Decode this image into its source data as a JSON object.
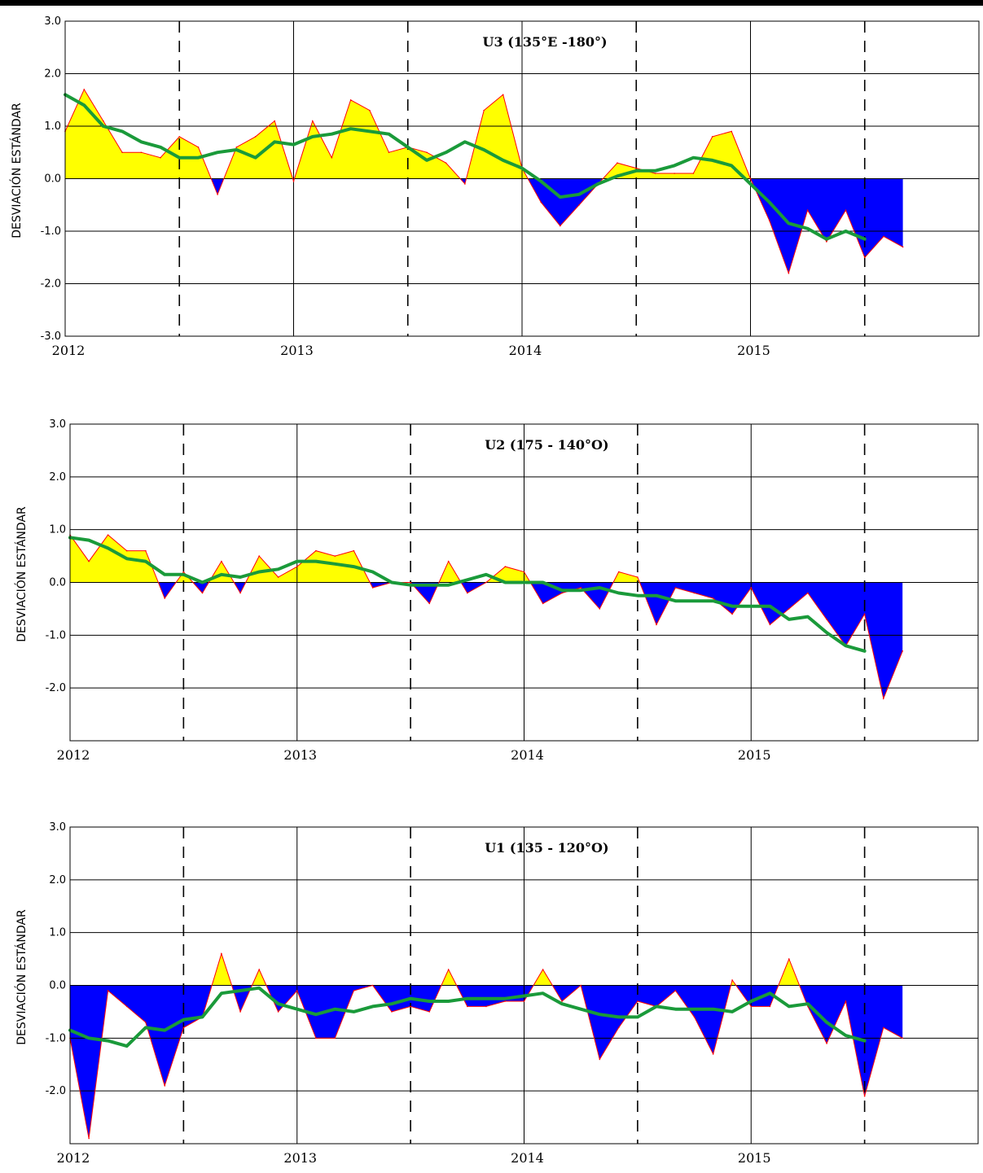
{
  "colors": {
    "positive_fill": "#ffff00",
    "negative_fill": "#0000ff",
    "outline": "#ff0000",
    "smooth_line": "#1a9a3a"
  },
  "chart_data": [
    {
      "type": "area",
      "title": "U3 (135°E -180°)",
      "ylabel": "DESVIACIÓN ESTÁNDAR",
      "ylim": [
        -3,
        3
      ],
      "xlim": [
        2012.0,
        2016.0
      ],
      "x_ticks": [
        "2012",
        "2013",
        "2014",
        "2015"
      ],
      "y_ticks": [
        "3.0",
        "2.0",
        "1.0",
        "0.0",
        "-1.0",
        "-2.0",
        "-3.0"
      ],
      "grid": true,
      "dashed_gridlines_at": [
        2012.5,
        2013.5,
        2014.5,
        2015.5
      ],
      "series": [
        {
          "x": [
            2012.0,
            2012.083,
            2012.167,
            2012.25,
            2012.333,
            2012.417,
            2012.5,
            2012.583,
            2012.667,
            2012.75,
            2012.833,
            2012.917,
            2013.0,
            2013.083,
            2013.167,
            2013.25,
            2013.333,
            2013.417,
            2013.5,
            2013.583,
            2013.667,
            2013.75,
            2013.833,
            2013.917,
            2014.0,
            2014.083,
            2014.167,
            2014.25,
            2014.333,
            2014.417,
            2014.5,
            2014.583,
            2014.667,
            2014.75,
            2014.833,
            2014.917,
            2015.0,
            2015.083,
            2015.167,
            2015.25,
            2015.333,
            2015.417,
            2015.5,
            2015.583,
            2015.667
          ],
          "y": [
            0.9,
            1.7,
            1.1,
            0.5,
            0.5,
            0.4,
            0.8,
            0.6,
            -0.3,
            0.6,
            0.8,
            1.1,
            -0.05,
            1.1,
            0.4,
            1.5,
            1.3,
            0.5,
            0.6,
            0.5,
            0.3,
            -0.1,
            1.3,
            1.6,
            0.2,
            -0.45,
            -0.9,
            -0.5,
            -0.1,
            0.3,
            0.2,
            0.1,
            0.1,
            0.1,
            0.8,
            0.9,
            0.0,
            -0.8,
            -1.8,
            -0.6,
            -1.2,
            -0.6,
            -1.5,
            -1.1,
            -1.3
          ]
        },
        {
          "x": [
            2012.0,
            2012.083,
            2012.167,
            2012.25,
            2012.333,
            2012.417,
            2012.5,
            2012.583,
            2012.667,
            2012.75,
            2012.833,
            2012.917,
            2013.0,
            2013.083,
            2013.167,
            2013.25,
            2013.333,
            2013.417,
            2013.5,
            2013.583,
            2013.667,
            2013.75,
            2013.833,
            2013.917,
            2014.0,
            2014.083,
            2014.167,
            2014.25,
            2014.333,
            2014.417,
            2014.5,
            2014.583,
            2014.667,
            2014.75,
            2014.833,
            2014.917,
            2015.0,
            2015.083,
            2015.167,
            2015.25,
            2015.333,
            2015.417,
            2015.5
          ],
          "y": [
            1.6,
            1.4,
            1.0,
            0.9,
            0.7,
            0.6,
            0.4,
            0.4,
            0.5,
            0.55,
            0.4,
            0.7,
            0.65,
            0.8,
            0.85,
            0.95,
            0.9,
            0.85,
            0.6,
            0.35,
            0.5,
            0.7,
            0.55,
            0.35,
            0.2,
            -0.05,
            -0.35,
            -0.3,
            -0.1,
            0.05,
            0.15,
            0.15,
            0.25,
            0.4,
            0.35,
            0.25,
            -0.1,
            -0.45,
            -0.85,
            -0.95,
            -1.15,
            -1.0,
            -1.15
          ]
        }
      ]
    },
    {
      "type": "area",
      "title": "U2 (175 - 140°O)",
      "ylabel": "DESVIACIÓN ESTÁNDAR",
      "ylim": [
        -3,
        3
      ],
      "xlim": [
        2012.0,
        2016.0
      ],
      "x_ticks": [
        "2012",
        "2013",
        "2014",
        "2015"
      ],
      "y_ticks": [
        "3.0",
        "2.0",
        "1.0",
        "0.0",
        "-1.0",
        "-2.0"
      ],
      "grid": true,
      "dashed_gridlines_at": [
        2012.5,
        2013.5,
        2014.5,
        2015.5
      ],
      "series": [
        {
          "x": [
            2012.0,
            2012.083,
            2012.167,
            2012.25,
            2012.333,
            2012.417,
            2012.5,
            2012.583,
            2012.667,
            2012.75,
            2012.833,
            2012.917,
            2013.0,
            2013.083,
            2013.167,
            2013.25,
            2013.333,
            2013.417,
            2013.5,
            2013.583,
            2013.667,
            2013.75,
            2013.833,
            2013.917,
            2014.0,
            2014.083,
            2014.167,
            2014.25,
            2014.333,
            2014.417,
            2014.5,
            2014.583,
            2014.667,
            2014.75,
            2014.833,
            2014.917,
            2015.0,
            2015.083,
            2015.167,
            2015.25,
            2015.333,
            2015.417,
            2015.5,
            2015.583,
            2015.667
          ],
          "y": [
            0.9,
            0.4,
            0.9,
            0.6,
            0.6,
            -0.3,
            0.2,
            -0.2,
            0.4,
            -0.2,
            0.5,
            0.1,
            0.3,
            0.6,
            0.5,
            0.6,
            -0.1,
            0.0,
            0.0,
            -0.4,
            0.4,
            -0.2,
            0.0,
            0.3,
            0.2,
            -0.4,
            -0.2,
            -0.1,
            -0.5,
            0.2,
            0.1,
            -0.8,
            -0.1,
            -0.2,
            -0.3,
            -0.6,
            -0.1,
            -0.8,
            -0.5,
            -0.2,
            -0.7,
            -1.2,
            -0.6,
            -2.2,
            -1.3
          ]
        },
        {
          "x": [
            2012.0,
            2012.083,
            2012.167,
            2012.25,
            2012.333,
            2012.417,
            2012.5,
            2012.583,
            2012.667,
            2012.75,
            2012.833,
            2012.917,
            2013.0,
            2013.083,
            2013.167,
            2013.25,
            2013.333,
            2013.417,
            2013.5,
            2013.583,
            2013.667,
            2013.75,
            2013.833,
            2013.917,
            2014.0,
            2014.083,
            2014.167,
            2014.25,
            2014.333,
            2014.417,
            2014.5,
            2014.583,
            2014.667,
            2014.75,
            2014.833,
            2014.917,
            2015.0,
            2015.083,
            2015.167,
            2015.25,
            2015.333,
            2015.417,
            2015.5
          ],
          "y": [
            0.85,
            0.8,
            0.65,
            0.45,
            0.4,
            0.15,
            0.15,
            0.0,
            0.15,
            0.1,
            0.2,
            0.25,
            0.4,
            0.4,
            0.35,
            0.3,
            0.2,
            0.0,
            -0.05,
            -0.05,
            -0.05,
            0.05,
            0.15,
            0.0,
            0.0,
            0.0,
            -0.15,
            -0.15,
            -0.1,
            -0.2,
            -0.25,
            -0.25,
            -0.35,
            -0.35,
            -0.35,
            -0.45,
            -0.45,
            -0.45,
            -0.7,
            -0.65,
            -0.95,
            -1.2,
            -1.3
          ]
        }
      ]
    },
    {
      "type": "area",
      "title": "U1 (135 - 120°O)",
      "ylabel": "DESVIACIÓN ESTÁNDAR",
      "ylim": [
        -3,
        3
      ],
      "xlim": [
        2012.0,
        2016.0
      ],
      "x_ticks": [
        "2012",
        "2013",
        "2014",
        "2015"
      ],
      "y_ticks": [
        "3.0",
        "2.0",
        "1.0",
        "0.0",
        "-1.0",
        "-2.0"
      ],
      "grid": true,
      "dashed_gridlines_at": [
        2012.5,
        2013.5,
        2014.5,
        2015.5
      ],
      "series": [
        {
          "x": [
            2012.0,
            2012.083,
            2012.167,
            2012.25,
            2012.333,
            2012.417,
            2012.5,
            2012.583,
            2012.667,
            2012.75,
            2012.833,
            2012.917,
            2013.0,
            2013.083,
            2013.167,
            2013.25,
            2013.333,
            2013.417,
            2013.5,
            2013.583,
            2013.667,
            2013.75,
            2013.833,
            2013.917,
            2014.0,
            2014.083,
            2014.167,
            2014.25,
            2014.333,
            2014.417,
            2014.5,
            2014.583,
            2014.667,
            2014.75,
            2014.833,
            2014.917,
            2015.0,
            2015.083,
            2015.167,
            2015.25,
            2015.333,
            2015.417,
            2015.5,
            2015.583,
            2015.667
          ],
          "y": [
            -1.0,
            -2.9,
            -0.1,
            -0.4,
            -0.7,
            -1.9,
            -0.8,
            -0.6,
            0.6,
            -0.5,
            0.3,
            -0.5,
            -0.1,
            -1.0,
            -1.0,
            -0.1,
            0.0,
            -0.5,
            -0.4,
            -0.5,
            0.3,
            -0.4,
            -0.4,
            -0.3,
            -0.3,
            0.3,
            -0.3,
            0.0,
            -1.4,
            -0.8,
            -0.3,
            -0.4,
            -0.1,
            -0.6,
            -1.3,
            0.1,
            -0.4,
            -0.4,
            0.5,
            -0.4,
            -1.1,
            -0.3,
            -2.1,
            -0.8,
            -1.0
          ]
        },
        {
          "x": [
            2012.0,
            2012.083,
            2012.167,
            2012.25,
            2012.333,
            2012.417,
            2012.5,
            2012.583,
            2012.667,
            2012.75,
            2012.833,
            2012.917,
            2013.0,
            2013.083,
            2013.167,
            2013.25,
            2013.333,
            2013.417,
            2013.5,
            2013.583,
            2013.667,
            2013.75,
            2013.833,
            2013.917,
            2014.0,
            2014.083,
            2014.167,
            2014.25,
            2014.333,
            2014.417,
            2014.5,
            2014.583,
            2014.667,
            2014.75,
            2014.833,
            2014.917,
            2015.0,
            2015.083,
            2015.167,
            2015.25,
            2015.333,
            2015.417,
            2015.5
          ],
          "y": [
            -0.85,
            -1.0,
            -1.05,
            -1.15,
            -0.8,
            -0.85,
            -0.65,
            -0.6,
            -0.15,
            -0.1,
            -0.05,
            -0.35,
            -0.45,
            -0.55,
            -0.45,
            -0.5,
            -0.4,
            -0.35,
            -0.25,
            -0.3,
            -0.3,
            -0.25,
            -0.25,
            -0.25,
            -0.2,
            -0.15,
            -0.35,
            -0.45,
            -0.55,
            -0.6,
            -0.6,
            -0.4,
            -0.45,
            -0.45,
            -0.45,
            -0.5,
            -0.3,
            -0.15,
            -0.4,
            -0.35,
            -0.7,
            -0.95,
            -1.05
          ]
        }
      ]
    }
  ]
}
